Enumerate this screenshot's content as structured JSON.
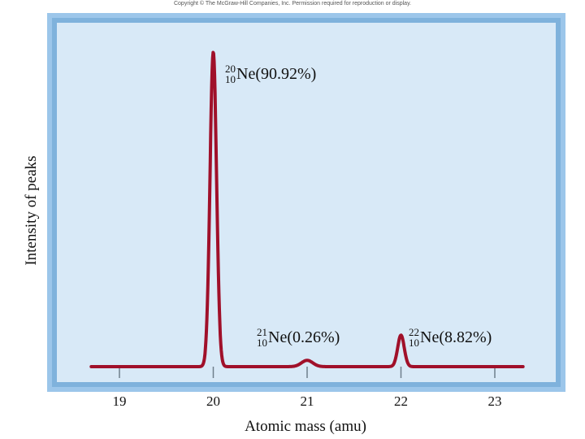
{
  "copyright": "Copyright © The McGraw-Hill Companies, Inc. Permission required for reproduction or display.",
  "chart_data": {
    "type": "line",
    "xlabel": "Atomic mass (amu)",
    "ylabel": "Intensity of peaks",
    "xlim": [
      18.7,
      23.3
    ],
    "x_ticks": [
      19,
      20,
      21,
      22,
      23
    ],
    "peaks": [
      {
        "mass": 20,
        "element": "Ne",
        "mass_number": "20",
        "atomic_number": "10",
        "abundance": "(90.92%)",
        "relative_height": 1.0
      },
      {
        "mass": 21,
        "element": "Ne",
        "mass_number": "21",
        "atomic_number": "10",
        "abundance": "(0.26%)",
        "relative_height": 0.02
      },
      {
        "mass": 22,
        "element": "Ne",
        "mass_number": "22",
        "atomic_number": "10",
        "abundance": "(8.82%)",
        "relative_height": 0.1
      }
    ],
    "colors": {
      "line": "#a0102a",
      "panel": "#d8e9f7",
      "frame": "#7fb2dc"
    }
  }
}
